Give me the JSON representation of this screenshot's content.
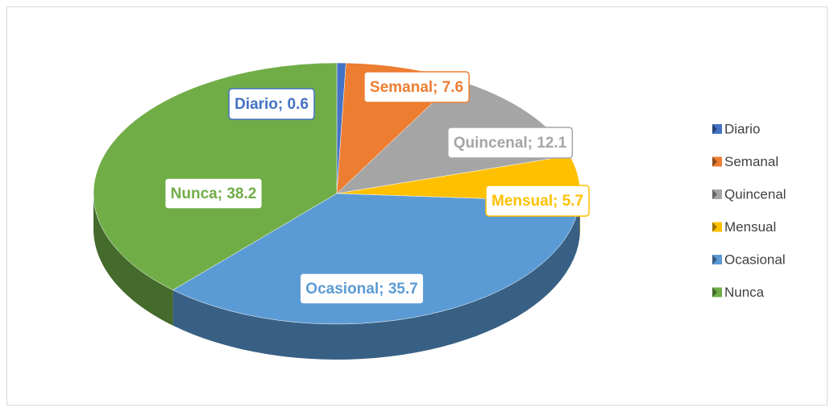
{
  "chart_data": {
    "type": "pie3d",
    "categories": [
      "Diario",
      "Semanal",
      "Quincenal",
      "Mensual",
      "Ocasional",
      "Nunca"
    ],
    "values": [
      0.6,
      7.6,
      12.1,
      5.7,
      35.7,
      38.2
    ],
    "value_labels": [
      "Diario; 0.6",
      "Semanal; 7.6",
      "Quincenal; 12.1",
      "Mensual; 5.7",
      "Ocasional; 35.7",
      "Nunca; 38.2"
    ],
    "colors": [
      "#4472c4",
      "#ed7d31",
      "#a5a5a5",
      "#ffc000",
      "#5b9bd5",
      "#70ad47"
    ],
    "legend": "right"
  }
}
